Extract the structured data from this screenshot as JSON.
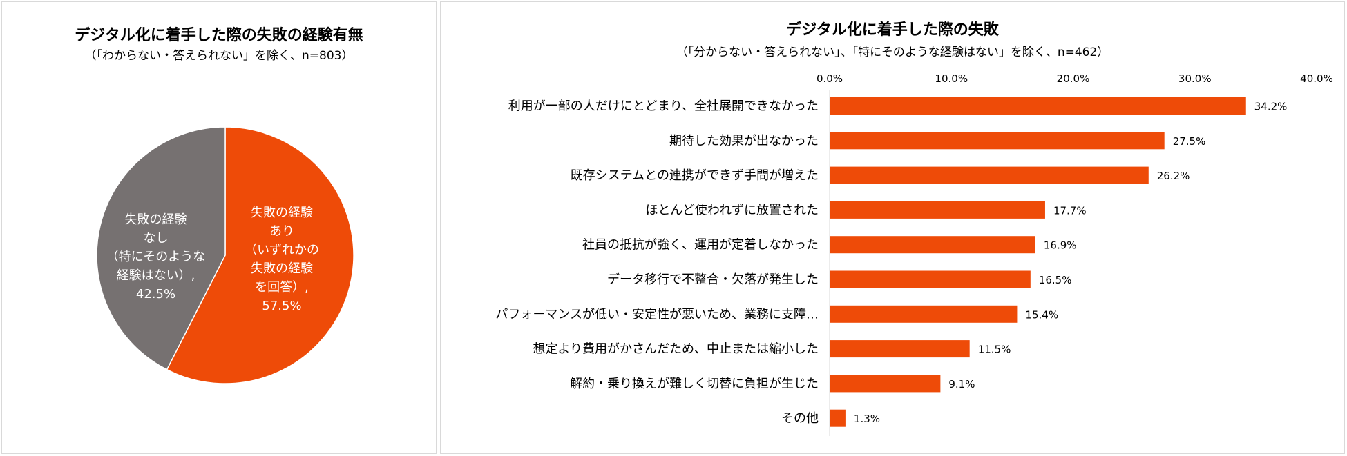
{
  "chart_data": [
    {
      "type": "pie",
      "title": "デジタル化に着手した際の失敗の経験有無",
      "subtitle": "（「わからない・答えられない」を除く、n=803）",
      "slices": [
        {
          "label_lines": [
            "失敗の経験",
            "あり",
            "（いずれかの",
            "失敗の経験",
            "を回答）, 57.5%"
          ],
          "value": 57.5,
          "color": "#EE4B08"
        },
        {
          "label_lines": [
            "失敗の経験",
            "なし",
            "（特にそのような",
            "経験はない）,",
            "42.5%"
          ],
          "value": 42.5,
          "color": "#767171"
        }
      ]
    },
    {
      "type": "bar",
      "orientation": "horizontal",
      "title": "デジタル化に着手した際の失敗",
      "subtitle": "（「分からない・答えられない」、「特にそのような経験はない」を除く、n=462）",
      "categories": [
        "利用が一部の人だけにとどまり、全社展開できなかった",
        "期待した効果が出なかった",
        "既存システムとの連携ができず手間が増えた",
        "ほとんど使われずに放置された",
        "社員の抵抗が強く、運用が定着しなかった",
        "データ移行で不整合・欠落が発生した",
        "パフォーマンスが低い・安定性が悪いため、業務に支障…",
        "想定より費用がかさんだため、中止または縮小した",
        "解約・乗り換えが難しく切替に負担が生じた",
        "その他"
      ],
      "values": [
        34.2,
        27.5,
        26.2,
        17.7,
        16.9,
        16.5,
        15.4,
        11.5,
        9.1,
        1.3
      ],
      "value_labels": [
        "34.2%",
        "27.5%",
        "26.2%",
        "17.7%",
        "16.9%",
        "16.5%",
        "15.4%",
        "11.5%",
        "9.1%",
        "1.3%"
      ],
      "xlim": [
        0,
        40
      ],
      "ticks": [
        "0.0%",
        "10.0%",
        "20.0%",
        "30.0%",
        "40.0%"
      ],
      "bar_color": "#EE4B08",
      "grid": false,
      "legend": "none"
    }
  ]
}
